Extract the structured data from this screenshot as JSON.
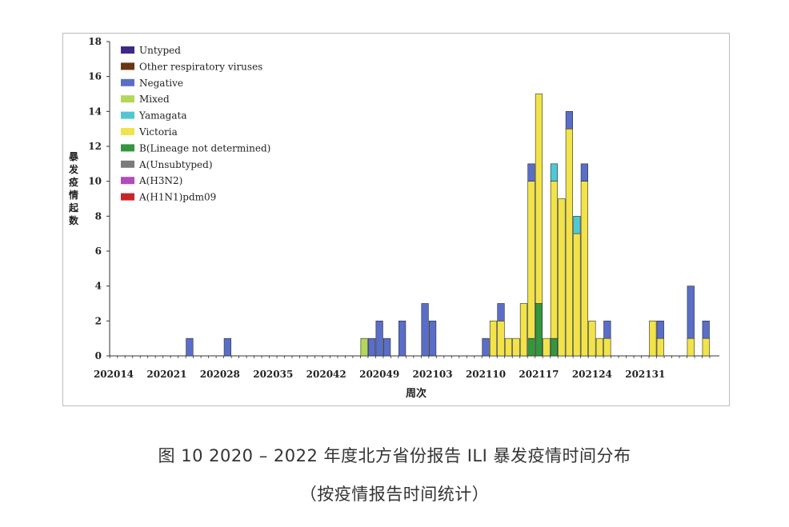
{
  "chart_data": {
    "type": "bar",
    "stacked": true,
    "ylabel": "暴发疫情起数",
    "xlabel": "周次",
    "ylim": [
      0,
      18
    ],
    "yticks": [
      0,
      2,
      4,
      6,
      8,
      10,
      12,
      14,
      16,
      18
    ],
    "xticks": [
      "202014",
      "202021",
      "202028",
      "202035",
      "202042",
      "202049",
      "202103",
      "202110",
      "202117",
      "202124",
      "202131"
    ],
    "legend_position": "top-left",
    "grid": false,
    "legend": [
      {
        "name": "Untyped",
        "color": "#3c2a86"
      },
      {
        "name": "Other respiratory viruses",
        "color": "#6b3416"
      },
      {
        "name": "Negative",
        "color": "#5a6ec8"
      },
      {
        "name": "Mixed",
        "color": "#b3d75b"
      },
      {
        "name": "Yamagata",
        "color": "#52c7d4"
      },
      {
        "name": "Victoria",
        "color": "#f2e34a"
      },
      {
        "name": "B(Lineage not determined)",
        "color": "#35963e"
      },
      {
        "name": "A(Unsubtyped)",
        "color": "#7b7b7b"
      },
      {
        "name": "A(H3N2)",
        "color": "#b04cbc"
      },
      {
        "name": "A(H1N1)pdm09",
        "color": "#c8252b"
      }
    ],
    "bars": [
      {
        "week": "202024",
        "segments": {
          "Negative": 1
        }
      },
      {
        "week": "202029",
        "segments": {
          "Negative": 1
        }
      },
      {
        "week": "202047",
        "segments": {
          "Mixed": 1
        }
      },
      {
        "week": "202048",
        "segments": {
          "Negative": 1
        }
      },
      {
        "week": "202049",
        "segments": {
          "Negative": 2
        }
      },
      {
        "week": "202050",
        "segments": {
          "Negative": 1
        }
      },
      {
        "week": "202052",
        "segments": {
          "Negative": 2
        }
      },
      {
        "week": "202102",
        "segments": {
          "Negative": 3
        }
      },
      {
        "week": "202103",
        "segments": {
          "Negative": 2
        }
      },
      {
        "week": "202110",
        "segments": {
          "Negative": 1
        }
      },
      {
        "week": "202111",
        "segments": {
          "Victoria": 2
        }
      },
      {
        "week": "202112",
        "segments": {
          "Negative": 1,
          "Victoria": 2
        }
      },
      {
        "week": "202113",
        "segments": {
          "Victoria": 1
        }
      },
      {
        "week": "202114",
        "segments": {
          "Victoria": 1
        }
      },
      {
        "week": "202115",
        "segments": {
          "Victoria": 3
        }
      },
      {
        "week": "202116",
        "segments": {
          "Negative": 1,
          "Victoria": 9,
          "B(Lineage not determined)": 1
        }
      },
      {
        "week": "202117",
        "segments": {
          "Victoria": 12,
          "B(Lineage not determined)": 3
        }
      },
      {
        "week": "202118",
        "segments": {
          "Victoria": 1
        }
      },
      {
        "week": "202119",
        "segments": {
          "Yamagata": 1,
          "Victoria": 9,
          "B(Lineage not determined)": 1
        }
      },
      {
        "week": "202120",
        "segments": {
          "Victoria": 9
        }
      },
      {
        "week": "202121",
        "segments": {
          "Negative": 1,
          "Victoria": 13
        }
      },
      {
        "week": "202122",
        "segments": {
          "Yamagata": 1,
          "Victoria": 7
        }
      },
      {
        "week": "202123",
        "segments": {
          "Negative": 1,
          "Victoria": 10
        }
      },
      {
        "week": "202124",
        "segments": {
          "Victoria": 2
        }
      },
      {
        "week": "202125",
        "segments": {
          "Victoria": 1
        }
      },
      {
        "week": "202126",
        "segments": {
          "Negative": 1,
          "Victoria": 1
        }
      },
      {
        "week": "202132",
        "segments": {
          "Victoria": 2
        }
      },
      {
        "week": "202133",
        "segments": {
          "Negative": 1,
          "Victoria": 1
        }
      },
      {
        "week": "202137",
        "segments": {
          "Negative": 3,
          "Victoria": 1
        }
      },
      {
        "week": "202139",
        "segments": {
          "Negative": 1,
          "Victoria": 1
        }
      }
    ]
  },
  "caption": {
    "title": "图 10 2020 – 2022 年度北方省份报告 ILI 暴发疫情时间分布",
    "subtitle": "（按疫情报告时间统计）"
  }
}
